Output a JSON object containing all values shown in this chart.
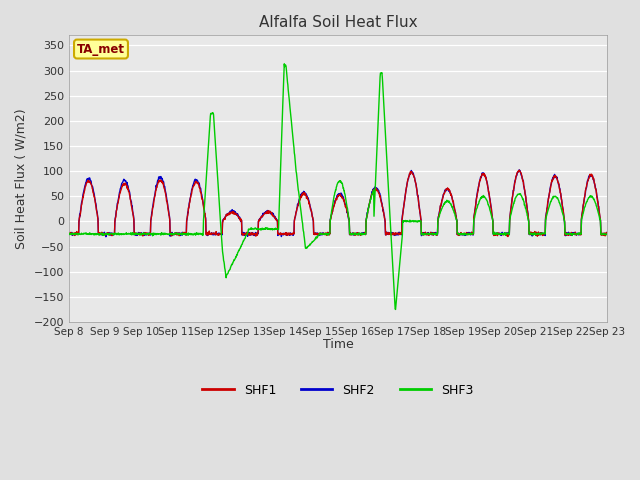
{
  "title": "Alfalfa Soil Heat Flux",
  "ylabel": "Soil Heat Flux ( W/m2)",
  "xlabel": "Time",
  "ylim": [
    -200,
    370
  ],
  "yticks": [
    -200,
    -150,
    -100,
    -50,
    0,
    50,
    100,
    150,
    200,
    250,
    300,
    350
  ],
  "annotation_text": "TA_met",
  "annotation_bg": "#ffff99",
  "annotation_border": "#ccaa00",
  "annotation_text_color": "#880000",
  "shf1_color": "#cc0000",
  "shf2_color": "#0000cc",
  "shf3_color": "#00cc00",
  "line_width": 1.0,
  "start_day": 8
}
